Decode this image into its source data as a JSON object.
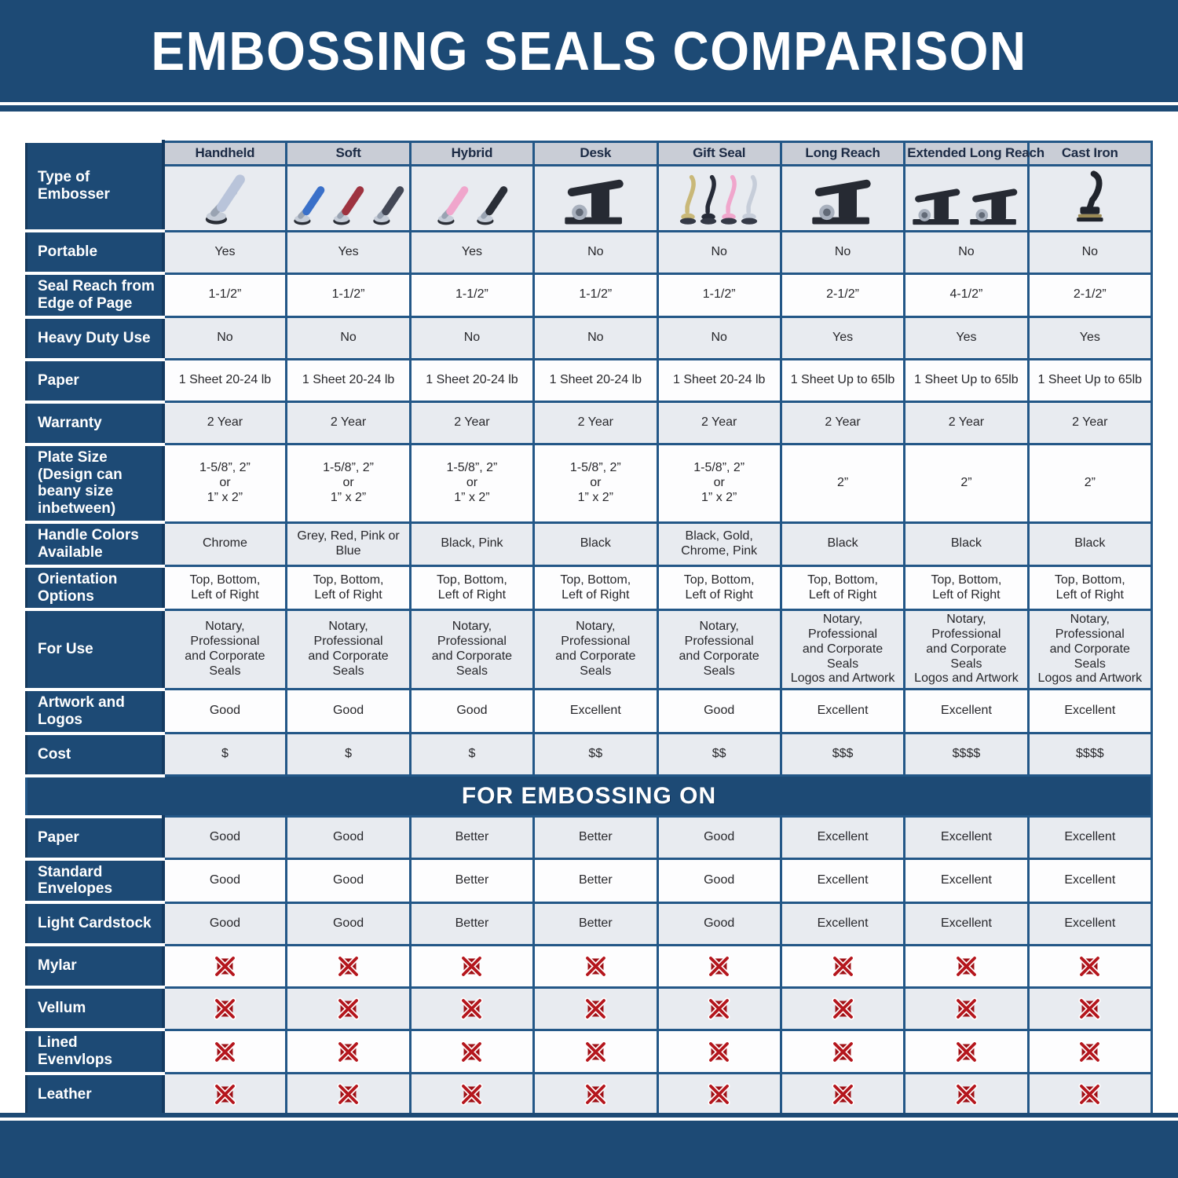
{
  "page_title": "EMBOSSING SEALS COMPARISON",
  "colors": {
    "accent_navy": "#1d4a75",
    "border_blue": "#235787",
    "header_gray": "#c9cdd6",
    "row_light": "#e8ebf0",
    "row_white": "#fdfdfe",
    "x_red": "#b5161d"
  },
  "icons": {
    "not_suitable": "crossed-red-box-x-icon"
  },
  "chart_data": {
    "type": "table",
    "title": "EMBOSSING SEALS COMPARISON",
    "corner_label": "Type of Embosser",
    "section2_title": "FOR EMBOSSING ON",
    "columns": [
      {
        "label": "Handheld",
        "icon": "hand-embosser",
        "icon_colors": [
          "#b9c4da"
        ]
      },
      {
        "label": "Soft",
        "icon": "hand-embosser",
        "icon_colors": [
          "#3a70c9",
          "#9e3340",
          "#434856"
        ]
      },
      {
        "label": "Hybrid",
        "icon": "hand-embosser",
        "icon_colors": [
          "#f0a6cc",
          "#2a2e37"
        ]
      },
      {
        "label": "Desk",
        "icon": "desk-embosser",
        "icon_colors": [
          "#262a33"
        ]
      },
      {
        "label": "Gift Seal",
        "icon": "slim-embosser",
        "icon_colors": [
          "#c9b878",
          "#262b38",
          "#f0a6cc",
          "#c6cdd9"
        ]
      },
      {
        "label": "Long Reach",
        "icon": "desk-embosser",
        "icon_colors": [
          "#262a33"
        ]
      },
      {
        "label": "Extended Long Reach",
        "icon": "desk-embosser",
        "icon_colors": [
          "#262a33",
          "#262a33"
        ]
      },
      {
        "label": "Cast Iron",
        "icon": "cast-iron-embosser",
        "icon_colors": [
          "#20242c"
        ]
      }
    ],
    "section1_rows": [
      {
        "label": "Portable",
        "shade": "light",
        "type": "text",
        "values": [
          "Yes",
          "Yes",
          "Yes",
          "No",
          "No",
          "No",
          "No",
          "No"
        ]
      },
      {
        "label": "Seal Reach from Edge of Page",
        "shade": "white",
        "type": "text",
        "values": [
          "1-1/2”",
          "1-1/2”",
          "1-1/2”",
          "1-1/2”",
          "1-1/2”",
          "2-1/2”",
          "4-1/2”",
          "2-1/2”"
        ]
      },
      {
        "label": "Heavy Duty Use",
        "shade": "light",
        "type": "text",
        "values": [
          "No",
          "No",
          "No",
          "No",
          "No",
          "Yes",
          "Yes",
          "Yes"
        ]
      },
      {
        "label": "Paper",
        "shade": "white",
        "type": "text",
        "values": [
          "1 Sheet 20-24 lb",
          "1 Sheet 20-24 lb",
          "1 Sheet 20-24 lb",
          "1 Sheet 20-24 lb",
          "1 Sheet 20-24 lb",
          "1 Sheet Up to 65lb",
          "1 Sheet Up to 65lb",
          "1 Sheet Up to 65lb"
        ]
      },
      {
        "label": "Warranty",
        "shade": "light",
        "type": "text",
        "values": [
          "2 Year",
          "2 Year",
          "2 Year",
          "2 Year",
          "2 Year",
          "2 Year",
          "2 Year",
          "2 Year"
        ]
      },
      {
        "label": "Plate Size (Design can beany size inbetween)",
        "shade": "white",
        "type": "text",
        "values": [
          "1-5/8”, 2”\nor\n1” x 2”",
          "1-5/8”, 2”\nor\n1” x 2”",
          "1-5/8”, 2”\nor\n1” x 2”",
          "1-5/8”, 2”\nor\n1” x 2”",
          "1-5/8”, 2”\nor\n1” x 2”",
          "2”",
          "2”",
          "2”"
        ]
      },
      {
        "label": "Handle Colors Available",
        "shade": "light",
        "type": "text",
        "values": [
          "Chrome",
          "Grey, Red, Pink or Blue",
          "Black, Pink",
          "Black",
          "Black, Gold, Chrome, Pink",
          "Black",
          "Black",
          "Black"
        ]
      },
      {
        "label": "Orientation Options",
        "shade": "white",
        "type": "text",
        "values": [
          "Top, Bottom,\nLeft of Right",
          "Top, Bottom,\nLeft of Right",
          "Top, Bottom,\nLeft of Right",
          "Top, Bottom,\nLeft of Right",
          "Top, Bottom,\nLeft of Right",
          "Top, Bottom,\nLeft of Right",
          "Top, Bottom,\nLeft of Right",
          "Top, Bottom,\nLeft of Right"
        ]
      },
      {
        "label": "For Use",
        "shade": "light",
        "type": "text",
        "values": [
          "Notary, Professional\nand Corporate Seals",
          "Notary, Professional\nand Corporate Seals",
          "Notary, Professional\nand Corporate Seals",
          "Notary, Professional\nand Corporate Seals",
          "Notary, Professional\nand Corporate Seals",
          "Notary, Professional\nand Corporate Seals\nLogos and Artwork",
          "Notary, Professional\nand Corporate Seals\nLogos and Artwork",
          "Notary, Professional\nand Corporate Seals\nLogos and Artwork"
        ]
      },
      {
        "label": "Artwork and Logos",
        "shade": "white",
        "type": "text",
        "values": [
          "Good",
          "Good",
          "Good",
          "Excellent",
          "Good",
          "Excellent",
          "Excellent",
          "Excellent"
        ]
      },
      {
        "label": "Cost",
        "shade": "light",
        "type": "text",
        "values": [
          "$",
          "$",
          "$",
          "$$",
          "$$",
          "$$$",
          "$$$$",
          "$$$$"
        ]
      }
    ],
    "section2_rows": [
      {
        "label": "Paper",
        "shade": "light",
        "type": "text",
        "values": [
          "Good",
          "Good",
          "Better",
          "Better",
          "Good",
          "Excellent",
          "Excellent",
          "Excellent"
        ]
      },
      {
        "label": "Standard Envelopes",
        "shade": "white",
        "type": "text",
        "values": [
          "Good",
          "Good",
          "Better",
          "Better",
          "Good",
          "Excellent",
          "Excellent",
          "Excellent"
        ]
      },
      {
        "label": "Light Cardstock",
        "shade": "light",
        "type": "text",
        "values": [
          "Good",
          "Good",
          "Better",
          "Better",
          "Good",
          "Excellent",
          "Excellent",
          "Excellent"
        ]
      },
      {
        "label": "Mylar",
        "shade": "white",
        "type": "x"
      },
      {
        "label": "Vellum",
        "shade": "light",
        "type": "x"
      },
      {
        "label": "Lined Evenvlops",
        "shade": "white",
        "type": "x"
      },
      {
        "label": "Leather",
        "shade": "light",
        "type": "x"
      }
    ]
  }
}
